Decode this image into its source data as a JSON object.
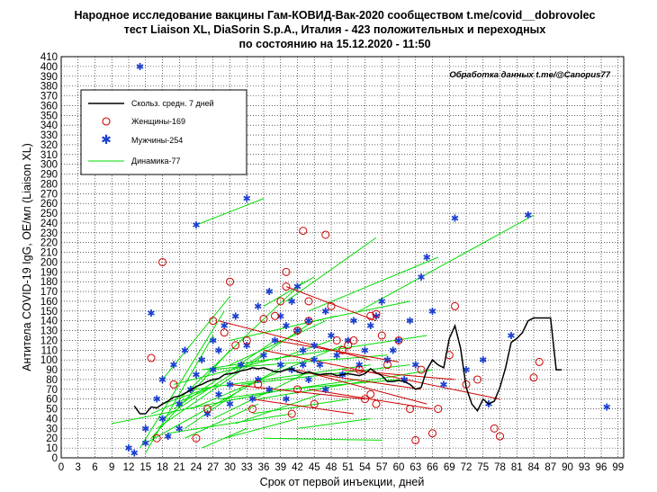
{
  "chart_data": {
    "type": "scatter",
    "title": [
      "Народное исследование вакцины Гам-КОВИД-Вак-2020 сообществом t.me/covid__dobrovolec",
      "тест Liaison XL, DiaSorin S.p.A., Италия - 423 положительных и переходных",
      "по состоянию на 15.12.2020 - 11:50"
    ],
    "credit": "Обработка данных t.me/@Canopus77",
    "xlabel": "Срок от первой инъекции, дней",
    "ylabel": "Антитела COVID-19 IgG, OE/мл (Liaison XL)",
    "xlim": [
      0,
      100
    ],
    "ylim": [
      0,
      410
    ],
    "xticks": [
      0,
      3,
      6,
      9,
      12,
      15,
      18,
      21,
      24,
      27,
      30,
      33,
      36,
      39,
      42,
      45,
      48,
      51,
      54,
      57,
      60,
      63,
      66,
      69,
      72,
      75,
      78,
      81,
      84,
      87,
      90,
      93,
      96,
      99
    ],
    "yticks": [
      0,
      10,
      20,
      30,
      40,
      50,
      60,
      70,
      80,
      90,
      100,
      110,
      120,
      130,
      140,
      150,
      160,
      170,
      180,
      190,
      200,
      210,
      220,
      230,
      240,
      250,
      260,
      270,
      280,
      290,
      300,
      310,
      320,
      330,
      340,
      350,
      360,
      370,
      380,
      390,
      400,
      410
    ],
    "grid": true,
    "legend_position": "top-left",
    "legend": [
      {
        "key": "ma",
        "label": "Скольз. средн. 7 дней",
        "color": "#000000"
      },
      {
        "key": "women",
        "label": "Женщины-169",
        "color": "#cc0000"
      },
      {
        "key": "men",
        "label": "Мужчины-254",
        "color": "#1a3fd0"
      },
      {
        "key": "dyn",
        "label": "Динамика-77",
        "color": "#00dd00"
      }
    ],
    "moving_average": {
      "name": "Скольз. средн. 7 дней",
      "x": [
        13,
        14,
        15,
        16,
        17,
        18,
        19,
        20,
        21,
        22,
        23,
        24,
        25,
        26,
        27,
        28,
        29,
        30,
        31,
        32,
        33,
        34,
        35,
        36,
        37,
        38,
        39,
        40,
        41,
        42,
        43,
        44,
        45,
        46,
        47,
        48,
        49,
        50,
        51,
        52,
        53,
        54,
        55,
        56,
        57,
        58,
        59,
        60,
        61,
        62,
        63,
        64,
        65,
        66,
        67,
        68,
        69,
        70,
        71,
        72,
        73,
        74,
        75,
        76,
        77,
        78,
        79,
        80,
        81,
        82,
        83,
        84,
        85,
        86,
        87,
        88,
        89
      ],
      "y": [
        53,
        45,
        45,
        52,
        51,
        55,
        58,
        62,
        63,
        66,
        69,
        73,
        75,
        78,
        80,
        81,
        85,
        86,
        87,
        89,
        90,
        92,
        91,
        92,
        90,
        88,
        88,
        90,
        91,
        88,
        86,
        88,
        86,
        85,
        86,
        86,
        84,
        85,
        86,
        85,
        84,
        86,
        91,
        87,
        84,
        78,
        78,
        79,
        78,
        75,
        70,
        72,
        90,
        100,
        95,
        92,
        122,
        135,
        112,
        72,
        55,
        48,
        60,
        55,
        58,
        72,
        92,
        118,
        122,
        128,
        140,
        143,
        143,
        143,
        143,
        90,
        90
      ]
    },
    "women": {
      "name": "Женщины-169",
      "x": [
        16,
        17,
        18,
        20,
        24,
        26,
        27,
        29,
        30,
        31,
        33,
        34,
        35,
        36,
        38,
        39,
        40,
        40,
        41,
        42,
        42,
        43,
        44,
        44,
        45,
        47,
        48,
        49,
        50,
        51,
        52,
        53,
        54,
        55,
        55,
        56,
        56,
        57,
        58,
        60,
        62,
        63,
        64,
        66,
        67,
        69,
        70,
        72,
        74,
        77,
        78,
        84,
        85
      ],
      "y": [
        102,
        20,
        200,
        75,
        20,
        50,
        140,
        128,
        180,
        115,
        120,
        50,
        75,
        142,
        145,
        160,
        175,
        190,
        45,
        130,
        70,
        232,
        140,
        160,
        55,
        228,
        155,
        120,
        110,
        115,
        120,
        90,
        60,
        145,
        65,
        147,
        55,
        125,
        95,
        120,
        50,
        18,
        90,
        25,
        50,
        105,
        155,
        75,
        80,
        30,
        22,
        82,
        98
      ]
    },
    "men": {
      "name": "Мужчины-254",
      "x": [
        12,
        13,
        14,
        15,
        15,
        16,
        17,
        18,
        18,
        19,
        20,
        21,
        21,
        22,
        23,
        24,
        24,
        25,
        26,
        27,
        27,
        28,
        28,
        29,
        30,
        30,
        31,
        32,
        33,
        33,
        34,
        35,
        35,
        36,
        37,
        37,
        38,
        39,
        39,
        40,
        40,
        41,
        41,
        42,
        42,
        43,
        43,
        44,
        44,
        45,
        45,
        46,
        47,
        47,
        48,
        49,
        50,
        51,
        52,
        53,
        54,
        55,
        56,
        57,
        58,
        59,
        60,
        61,
        62,
        63,
        64,
        65,
        66,
        68,
        70,
        72,
        75,
        76,
        80,
        83,
        97
      ],
      "y": [
        10,
        5,
        400,
        15,
        30,
        148,
        60,
        80,
        40,
        22,
        95,
        55,
        30,
        110,
        70,
        85,
        238,
        100,
        45,
        120,
        90,
        65,
        110,
        135,
        75,
        55,
        145,
        95,
        265,
        115,
        60,
        155,
        80,
        105,
        170,
        70,
        120,
        145,
        95,
        135,
        60,
        160,
        90,
        175,
        130,
        95,
        110,
        140,
        80,
        115,
        100,
        95,
        150,
        70,
        125,
        105,
        85,
        120,
        140,
        95,
        110,
        135,
        145,
        160,
        100,
        110,
        120,
        80,
        140,
        95,
        185,
        205,
        150,
        75,
        245,
        90,
        100,
        55,
        125,
        248,
        52
      ]
    },
    "dynamics": {
      "name": "Динамика-77",
      "segments": [
        [
          [
            24,
            238
          ],
          [
            36,
            265
          ]
        ],
        [
          [
            53,
            150
          ],
          [
            84,
            248
          ]
        ],
        [
          [
            40,
            160
          ],
          [
            56,
            225
          ]
        ],
        [
          [
            44,
            150
          ],
          [
            67,
            205
          ]
        ],
        [
          [
            45,
            140
          ],
          [
            62,
            160
          ]
        ],
        [
          [
            36,
            155
          ],
          [
            45,
            185
          ]
        ],
        [
          [
            18,
            80
          ],
          [
            30,
            165
          ]
        ],
        [
          [
            14,
            10
          ],
          [
            29,
            150
          ]
        ],
        [
          [
            15,
            5
          ],
          [
            27,
            125
          ]
        ],
        [
          [
            16,
            20
          ],
          [
            30,
            110
          ]
        ],
        [
          [
            17,
            30
          ],
          [
            36,
            105
          ]
        ],
        [
          [
            15,
            15
          ],
          [
            40,
            95
          ]
        ],
        [
          [
            18,
            40
          ],
          [
            45,
            140
          ]
        ],
        [
          [
            20,
            50
          ],
          [
            38,
            120
          ]
        ],
        [
          [
            21,
            60
          ],
          [
            43,
            180
          ]
        ],
        [
          [
            22,
            30
          ],
          [
            32,
            70
          ]
        ],
        [
          [
            9,
            35
          ],
          [
            40,
            70
          ]
        ],
        [
          [
            24,
            70
          ],
          [
            55,
            95
          ]
        ],
        [
          [
            26,
            90
          ],
          [
            58,
            105
          ]
        ],
        [
          [
            28,
            60
          ],
          [
            53,
            80
          ]
        ],
        [
          [
            30,
            120
          ],
          [
            49,
            145
          ]
        ],
        [
          [
            27,
            40
          ],
          [
            43,
            85
          ]
        ],
        [
          [
            19,
            25
          ],
          [
            41,
            45
          ]
        ],
        [
          [
            25,
            10
          ],
          [
            33,
            30
          ]
        ],
        [
          [
            23,
            50
          ],
          [
            50,
            115
          ]
        ],
        [
          [
            32,
            75
          ],
          [
            62,
            95
          ]
        ],
        [
          [
            34,
            45
          ],
          [
            51,
            60
          ]
        ],
        [
          [
            29,
            20
          ],
          [
            42,
            40
          ]
        ],
        [
          [
            36,
            20
          ],
          [
            57,
            18
          ]
        ],
        [
          [
            38,
            100
          ],
          [
            48,
            120
          ]
        ],
        [
          [
            40,
            70
          ],
          [
            60,
            80
          ]
        ],
        [
          [
            42,
            30
          ],
          [
            55,
            40
          ]
        ],
        [
          [
            25,
            90
          ],
          [
            65,
            125
          ]
        ],
        [
          [
            18,
            55
          ],
          [
            28,
            75
          ]
        ],
        [
          [
            30,
            95
          ],
          [
            47,
            140
          ]
        ],
        [
          [
            35,
            60
          ],
          [
            66,
            90
          ]
        ],
        [
          [
            22,
            20
          ],
          [
            35,
            55
          ]
        ],
        [
          [
            20,
            75
          ],
          [
            37,
            100
          ]
        ],
        [
          [
            16,
            45
          ],
          [
            26,
            70
          ]
        ],
        [
          [
            31,
            35
          ],
          [
            46,
            65
          ]
        ]
      ]
    },
    "decline": {
      "segments": [
        [
          [
            28,
            140
          ],
          [
            55,
            100
          ]
        ],
        [
          [
            40,
            175
          ],
          [
            56,
            140
          ]
        ],
        [
          [
            42,
            90
          ],
          [
            65,
            55
          ]
        ],
        [
          [
            36,
            110
          ],
          [
            78,
            60
          ]
        ],
        [
          [
            44,
            70
          ],
          [
            66,
            50
          ]
        ],
        [
          [
            30,
            75
          ],
          [
            54,
            60
          ]
        ],
        [
          [
            38,
            120
          ],
          [
            60,
            98
          ]
        ],
        [
          [
            46,
            85
          ],
          [
            64,
            70
          ]
        ],
        [
          [
            50,
            90
          ],
          [
            70,
            80
          ]
        ],
        [
          [
            34,
            60
          ],
          [
            52,
            45
          ]
        ]
      ]
    }
  }
}
